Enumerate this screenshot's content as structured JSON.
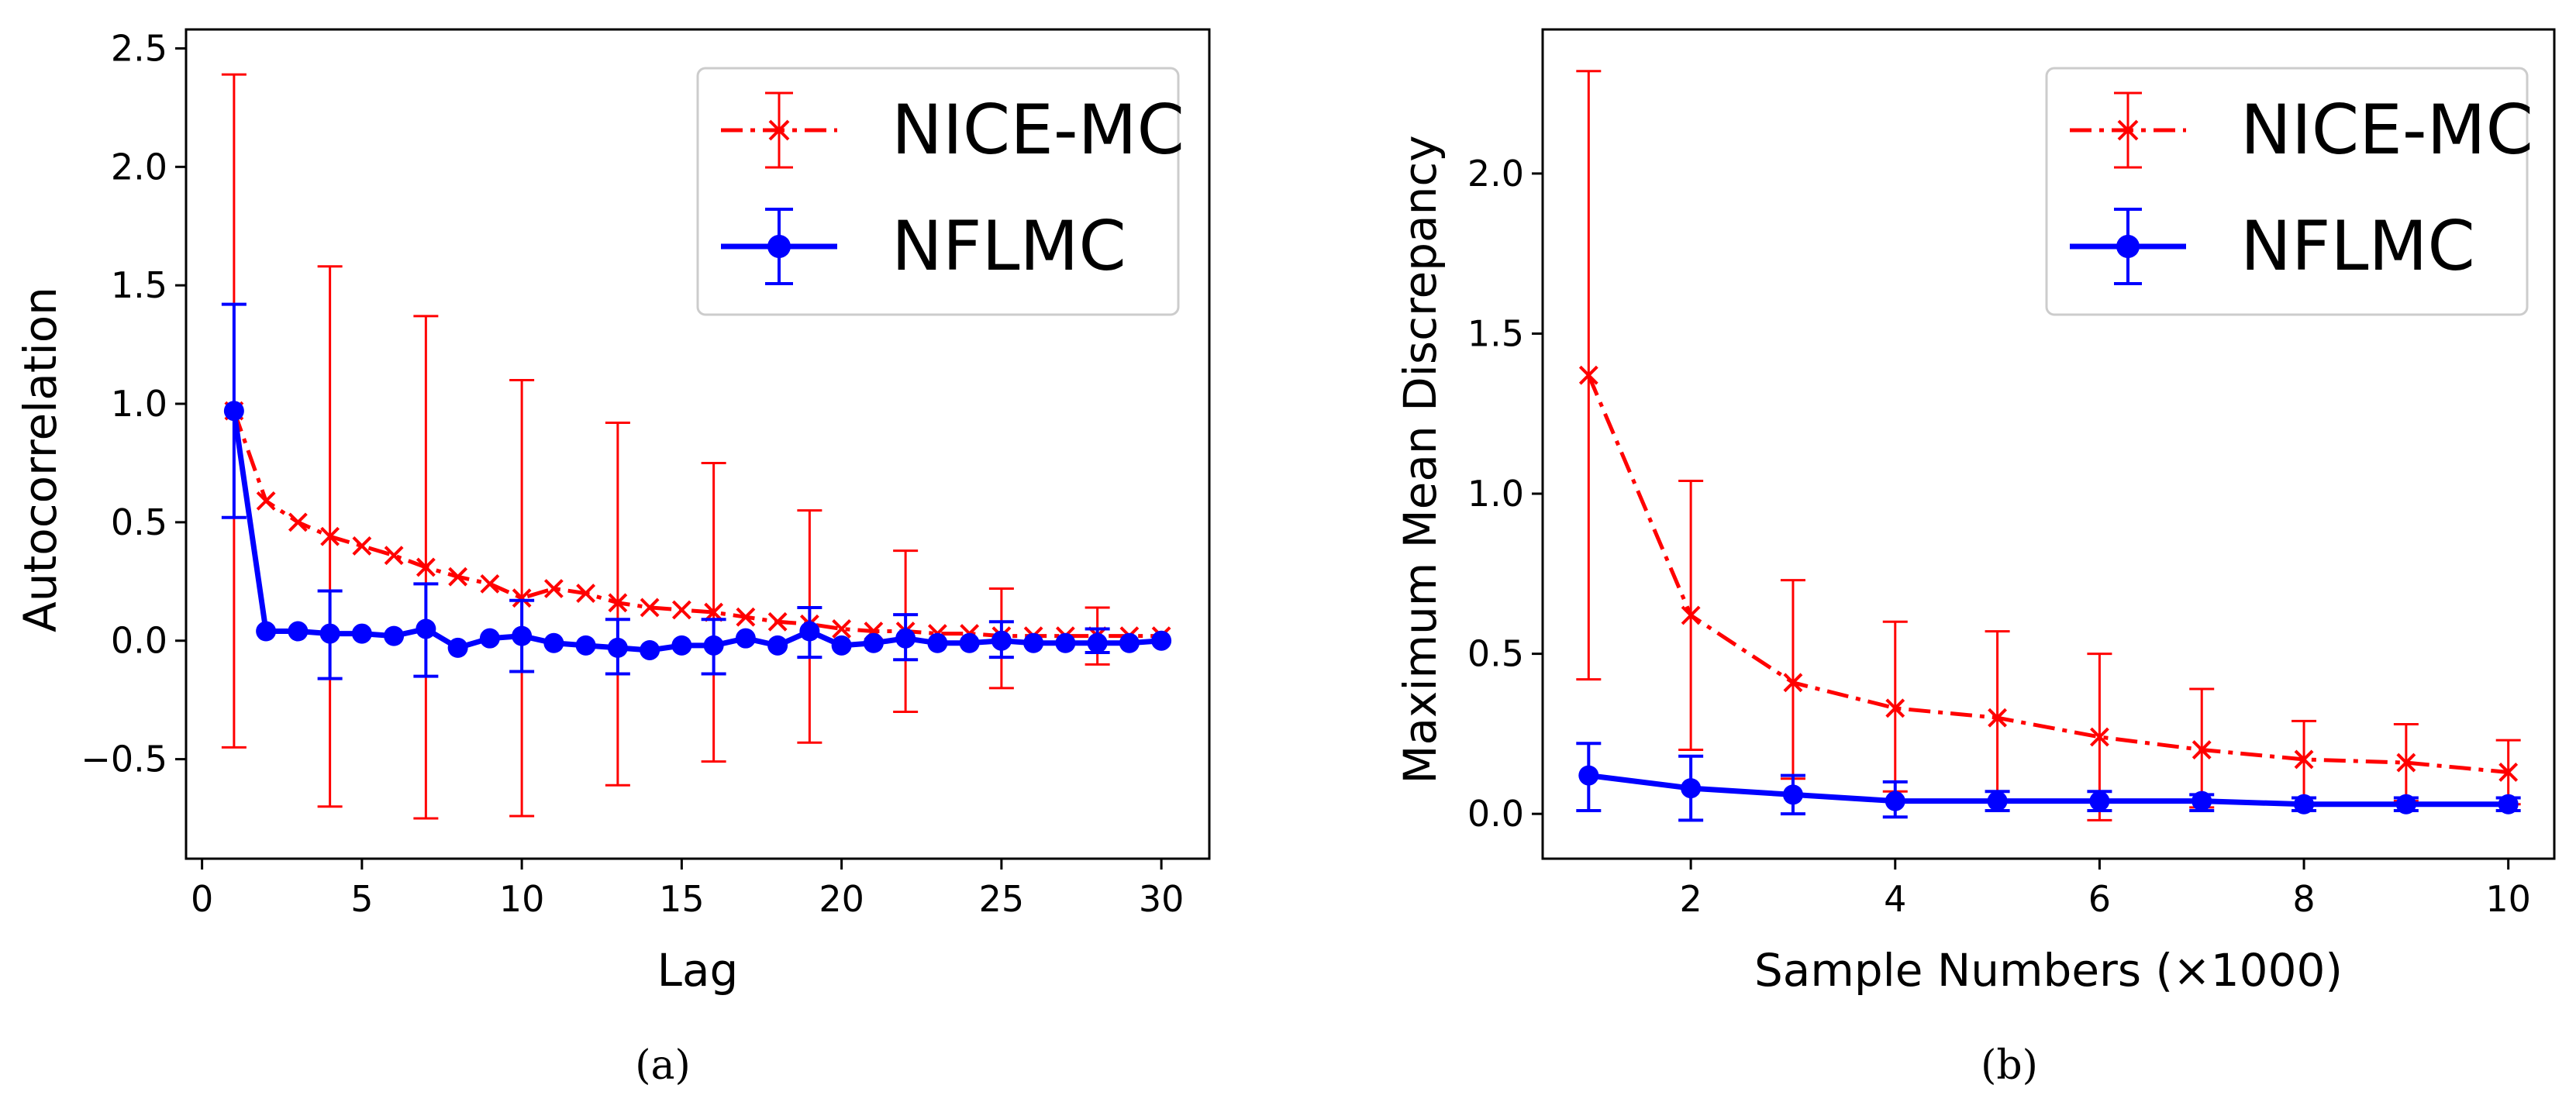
{
  "chart_data": [
    {
      "type": "line",
      "panel_label": "(a)",
      "xlabel": "Lag",
      "ylabel": "Autocorrelation",
      "xlim": [
        -0.5,
        31.5
      ],
      "ylim": [
        -0.92,
        2.58
      ],
      "xticks": [
        0,
        5,
        10,
        15,
        20,
        25,
        30
      ],
      "xtick_labels": [
        "0",
        "5",
        "10",
        "15",
        "20",
        "25",
        "30"
      ],
      "yticks": [
        -0.5,
        0.0,
        0.5,
        1.0,
        1.5,
        2.0,
        2.5
      ],
      "ytick_labels": [
        "−0.5",
        "0.0",
        "0.5",
        "1.0",
        "1.5",
        "2.0",
        "2.5"
      ],
      "legend_position": "top-right",
      "series": [
        {
          "name": "NICE-MC",
          "color": "#ff0000",
          "line_style": "dashdot",
          "marker": "x",
          "x": [
            1,
            2,
            3,
            4,
            5,
            6,
            7,
            8,
            9,
            10,
            11,
            12,
            13,
            14,
            15,
            16,
            17,
            18,
            19,
            20,
            21,
            22,
            23,
            24,
            25,
            26,
            27,
            28,
            29,
            30
          ],
          "y": [
            0.97,
            0.59,
            0.5,
            0.44,
            0.4,
            0.36,
            0.31,
            0.27,
            0.24,
            0.18,
            0.22,
            0.2,
            0.16,
            0.14,
            0.13,
            0.12,
            0.1,
            0.08,
            0.07,
            0.05,
            0.04,
            0.04,
            0.03,
            0.03,
            0.02,
            0.02,
            0.02,
            0.02,
            0.02,
            0.02
          ],
          "errorbars": [
            {
              "x": 1,
              "low": -0.45,
              "high": 2.39
            },
            {
              "x": 4,
              "low": -0.7,
              "high": 1.58
            },
            {
              "x": 7,
              "low": -0.75,
              "high": 1.37
            },
            {
              "x": 10,
              "low": -0.74,
              "high": 1.1
            },
            {
              "x": 13,
              "low": -0.61,
              "high": 0.92
            },
            {
              "x": 16,
              "low": -0.51,
              "high": 0.75
            },
            {
              "x": 19,
              "low": -0.43,
              "high": 0.55
            },
            {
              "x": 22,
              "low": -0.3,
              "high": 0.38
            },
            {
              "x": 25,
              "low": -0.2,
              "high": 0.22
            },
            {
              "x": 28,
              "low": -0.1,
              "high": 0.14
            }
          ]
        },
        {
          "name": "NFLMC",
          "color": "#0000ff",
          "line_style": "solid",
          "marker": "o",
          "x": [
            1,
            2,
            3,
            4,
            5,
            6,
            7,
            8,
            9,
            10,
            11,
            12,
            13,
            14,
            15,
            16,
            17,
            18,
            19,
            20,
            21,
            22,
            23,
            24,
            25,
            26,
            27,
            28,
            29,
            30
          ],
          "y": [
            0.97,
            0.04,
            0.04,
            0.03,
            0.03,
            0.02,
            0.05,
            -0.03,
            0.01,
            0.02,
            -0.01,
            -0.02,
            -0.03,
            -0.04,
            -0.02,
            -0.02,
            0.01,
            -0.02,
            0.04,
            -0.02,
            -0.01,
            0.01,
            -0.01,
            -0.01,
            0.0,
            -0.01,
            -0.01,
            -0.01,
            -0.01,
            0.0
          ],
          "errorbars": [
            {
              "x": 1,
              "low": 0.52,
              "high": 1.42
            },
            {
              "x": 4,
              "low": -0.16,
              "high": 0.21
            },
            {
              "x": 7,
              "low": -0.15,
              "high": 0.24
            },
            {
              "x": 10,
              "low": -0.13,
              "high": 0.17
            },
            {
              "x": 13,
              "low": -0.14,
              "high": 0.09
            },
            {
              "x": 16,
              "low": -0.14,
              "high": 0.09
            },
            {
              "x": 19,
              "low": -0.07,
              "high": 0.14
            },
            {
              "x": 22,
              "low": -0.08,
              "high": 0.11
            },
            {
              "x": 25,
              "low": -0.07,
              "high": 0.08
            },
            {
              "x": 28,
              "low": -0.05,
              "high": 0.05
            }
          ]
        }
      ]
    },
    {
      "type": "line",
      "panel_label": "(b)",
      "xlabel": "Sample Numbers (×1000)",
      "ylabel": "Maximum Mean Discrepancy",
      "xlim": [
        0.55,
        10.45
      ],
      "ylim": [
        -0.14,
        2.45
      ],
      "xticks": [
        2,
        4,
        6,
        8,
        10
      ],
      "xtick_labels": [
        "2",
        "4",
        "6",
        "8",
        "10"
      ],
      "yticks": [
        0.0,
        0.5,
        1.0,
        1.5,
        2.0
      ],
      "ytick_labels": [
        "0.0",
        "0.5",
        "1.0",
        "1.5",
        "2.0"
      ],
      "legend_position": "top-right",
      "series": [
        {
          "name": "NICE-MC",
          "color": "#ff0000",
          "line_style": "dashdot",
          "marker": "x",
          "x": [
            1,
            2,
            3,
            4,
            5,
            6,
            7,
            8,
            9,
            10
          ],
          "y": [
            1.37,
            0.62,
            0.41,
            0.33,
            0.3,
            0.24,
            0.2,
            0.17,
            0.16,
            0.13
          ],
          "errorbars": [
            {
              "x": 1,
              "low": 0.42,
              "high": 2.32
            },
            {
              "x": 2,
              "low": 0.2,
              "high": 1.04
            },
            {
              "x": 3,
              "low": 0.11,
              "high": 0.73
            },
            {
              "x": 4,
              "low": 0.07,
              "high": 0.6
            },
            {
              "x": 5,
              "low": 0.04,
              "high": 0.57
            },
            {
              "x": 6,
              "low": -0.02,
              "high": 0.5
            },
            {
              "x": 7,
              "low": 0.02,
              "high": 0.39
            },
            {
              "x": 8,
              "low": 0.05,
              "high": 0.29
            },
            {
              "x": 9,
              "low": 0.04,
              "high": 0.28
            },
            {
              "x": 10,
              "low": 0.03,
              "high": 0.23
            }
          ]
        },
        {
          "name": "NFLMC",
          "color": "#0000ff",
          "line_style": "solid",
          "marker": "o",
          "x": [
            1,
            2,
            3,
            4,
            5,
            6,
            7,
            8,
            9,
            10
          ],
          "y": [
            0.12,
            0.08,
            0.06,
            0.04,
            0.04,
            0.04,
            0.04,
            0.03,
            0.03,
            0.03
          ],
          "errorbars": [
            {
              "x": 1,
              "low": 0.01,
              "high": 0.22
            },
            {
              "x": 2,
              "low": -0.02,
              "high": 0.18
            },
            {
              "x": 3,
              "low": 0.0,
              "high": 0.12
            },
            {
              "x": 4,
              "low": -0.01,
              "high": 0.1
            },
            {
              "x": 5,
              "low": 0.01,
              "high": 0.07
            },
            {
              "x": 6,
              "low": 0.01,
              "high": 0.07
            },
            {
              "x": 7,
              "low": 0.01,
              "high": 0.06
            },
            {
              "x": 8,
              "low": 0.01,
              "high": 0.05
            },
            {
              "x": 9,
              "low": 0.01,
              "high": 0.05
            },
            {
              "x": 10,
              "low": 0.01,
              "high": 0.05
            }
          ]
        }
      ]
    }
  ]
}
